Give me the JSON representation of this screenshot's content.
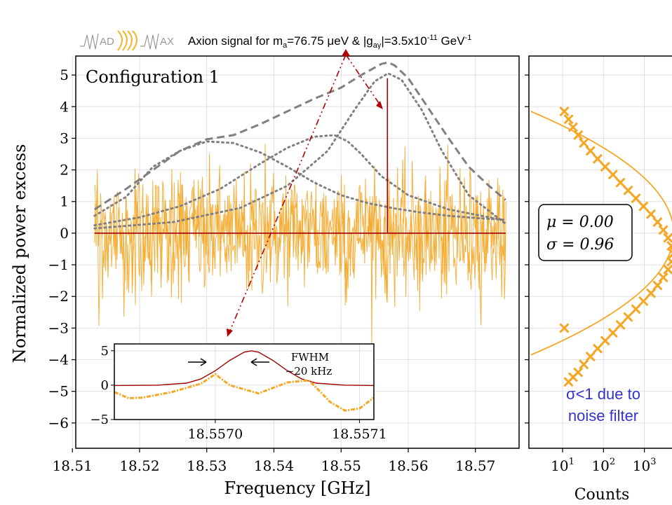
{
  "header": {
    "logo_text": "MADMAX",
    "logo_letters": [
      "AD",
      "AX"
    ],
    "signal_prefix": "Axion signal for m",
    "signal_sub_a": "a",
    "signal_mid": "=76.75 μeV & |g",
    "signal_sub_ag": "aγ",
    "signal_mid2": "|=3.5x10",
    "signal_sup1": "-11",
    "signal_unit": " GeV",
    "signal_sup2": "-1"
  },
  "colors": {
    "data": "#f5a623",
    "fit": "#f5a623",
    "signal": "#a00000",
    "envelope": "#808080",
    "arrow": "#b00000",
    "note": "#3333cc",
    "grid": "#e0e0e0"
  },
  "chart_data": [
    {
      "type": "line",
      "panel": "main",
      "annotation": "Configuration 1",
      "xlabel": "Frequency [GHz]",
      "ylabel": "Normalized power excess",
      "xlim": [
        18.5105,
        18.5765
      ],
      "ylim": [
        -6.8,
        5.6
      ],
      "xticks": [
        18.51,
        18.52,
        18.53,
        18.54,
        18.55,
        18.56,
        18.57
      ],
      "xtick_labels": [
        "18.51",
        "18.52",
        "18.53",
        "18.54",
        "18.55",
        "18.56",
        "18.57"
      ],
      "yticks": [
        5,
        4,
        3,
        2,
        1,
        0,
        -1,
        -2,
        -3,
        -4,
        -5,
        -6
      ],
      "ytick_labels": [
        "5",
        "4",
        "3",
        "2",
        "1",
        "0",
        "−1",
        "−2",
        "−3",
        "−4",
        "−5",
        "−6"
      ],
      "grid": true,
      "series": [
        {
          "style": "noise",
          "x_range": [
            18.5133,
            18.5745
          ],
          "sigma": 0.96
        },
        {
          "style": "dashed",
          "x": [
            18.5133,
            18.518,
            18.522,
            18.526,
            18.53,
            18.534,
            18.538,
            18.542,
            18.546,
            18.55,
            18.553,
            18.556,
            18.557,
            18.558,
            18.56,
            18.563,
            18.566,
            18.569,
            18.572,
            18.5745
          ],
          "y": [
            0.75,
            1.4,
            2.0,
            2.6,
            2.97,
            3.1,
            3.45,
            3.85,
            4.25,
            4.6,
            5.0,
            5.35,
            5.4,
            5.3,
            4.9,
            3.95,
            3.0,
            2.1,
            1.5,
            1.05
          ]
        },
        {
          "style": "dotted",
          "x": [
            18.5133,
            18.518,
            18.522,
            18.526,
            18.53,
            18.534,
            18.538,
            18.542,
            18.546,
            18.55,
            18.554,
            18.558,
            18.562,
            18.566,
            18.57,
            18.5745
          ],
          "y": [
            0.55,
            1.15,
            2.1,
            2.6,
            2.9,
            2.85,
            2.55,
            2.1,
            1.6,
            1.2,
            0.95,
            0.78,
            0.65,
            0.55,
            0.48,
            0.42
          ]
        },
        {
          "style": "dotted",
          "x": [
            18.5133,
            18.52,
            18.526,
            18.532,
            18.538,
            18.542,
            18.546,
            18.549,
            18.551,
            18.553,
            18.556,
            18.56,
            18.566,
            18.5745
          ],
          "y": [
            0.25,
            0.5,
            0.85,
            1.4,
            2.2,
            2.7,
            3.05,
            3.1,
            2.9,
            2.5,
            1.8,
            1.2,
            0.75,
            0.4
          ]
        },
        {
          "style": "dotted",
          "x": [
            18.5133,
            18.525,
            18.535,
            18.542,
            18.548,
            18.552,
            18.555,
            18.557,
            18.559,
            18.562,
            18.565,
            18.569,
            18.5745
          ],
          "y": [
            0.15,
            0.35,
            0.8,
            1.5,
            2.6,
            3.9,
            4.8,
            5.05,
            4.85,
            3.9,
            2.6,
            1.2,
            0.3
          ]
        },
        {
          "style": "signal",
          "x": [
            18.5133,
            18.5569,
            18.5569,
            18.5569,
            18.5745
          ],
          "y": [
            0.0,
            0.0,
            4.9,
            0.0,
            0.0
          ]
        }
      ]
    },
    {
      "type": "line",
      "panel": "inset",
      "xlim": [
        18.55693,
        18.55711
      ],
      "ylim": [
        -5,
        6
      ],
      "xticks": [
        18.557,
        18.5571
      ],
      "xtick_labels": [
        "18.5570",
        "18.5571"
      ],
      "yticks": [
        5,
        0,
        -5
      ],
      "ytick_labels": [
        "5",
        "0",
        "−5"
      ],
      "annotation": "FWHM",
      "annotation_sub": "~20 kHz",
      "series": [
        {
          "style": "signal",
          "x": [
            18.55693,
            18.55696,
            18.55698,
            18.55699,
            18.557,
            18.55701,
            18.55702,
            18.557025,
            18.55703,
            18.55704,
            18.55705,
            18.55706,
            18.55707,
            18.55709,
            18.55711
          ],
          "y": [
            -0.05,
            0.0,
            0.3,
            0.9,
            2.1,
            3.6,
            4.8,
            5.0,
            4.8,
            3.6,
            2.1,
            0.9,
            0.3,
            0.0,
            -0.05
          ]
        },
        {
          "style": "dashdot",
          "x": [
            18.55693,
            18.55694,
            18.55695,
            18.55697,
            18.55699,
            18.557,
            18.55701,
            18.55703,
            18.55705,
            18.557065,
            18.55708,
            18.55709,
            18.5571,
            18.55711
          ],
          "y": [
            -1.0,
            -1.9,
            -1.8,
            -1.0,
            0.2,
            1.6,
            0.0,
            -1.2,
            0.4,
            0.7,
            -2.5,
            -3.7,
            -3.4,
            -1.8
          ]
        }
      ]
    },
    {
      "type": "scatter",
      "panel": "histogram",
      "xlabel": "Counts",
      "xscale": "log",
      "xlim": [
        1.5,
        6000
      ],
      "ylim": [
        -6.8,
        5.6
      ],
      "xticks": [
        10,
        100,
        1000
      ],
      "xtick_labels_base": [
        "10",
        "10",
        "10"
      ],
      "xtick_labels_exp": [
        "1",
        "2",
        "3"
      ],
      "stats_mu": "μ = 0.00",
      "stats_sigma": "σ = 0.96",
      "note_line1": "σ<1 due to",
      "note_line2": "noise filter",
      "x": [
        11,
        14,
        18,
        24,
        33,
        48,
        72,
        110,
        170,
        260,
        400,
        620,
        950,
        1450,
        2100,
        2900,
        3800,
        4600,
        5200,
        4600,
        3800,
        2900,
        2100,
        1450,
        950,
        620,
        400,
        260,
        170,
        110,
        72,
        48,
        33,
        24,
        18,
        14,
        11
      ],
      "y": [
        3.85,
        3.6,
        3.35,
        3.1,
        2.85,
        2.6,
        2.35,
        2.1,
        1.85,
        1.6,
        1.35,
        1.1,
        0.85,
        0.6,
        0.35,
        0.1,
        -0.15,
        -0.4,
        -0.65,
        -0.9,
        -1.15,
        -1.4,
        -1.65,
        -1.9,
        -2.15,
        -2.4,
        -2.65,
        -2.9,
        -3.15,
        -3.4,
        -3.65,
        -3.9,
        -4.15,
        -4.4,
        -4.55,
        -4.7,
        -3.0
      ]
    }
  ]
}
